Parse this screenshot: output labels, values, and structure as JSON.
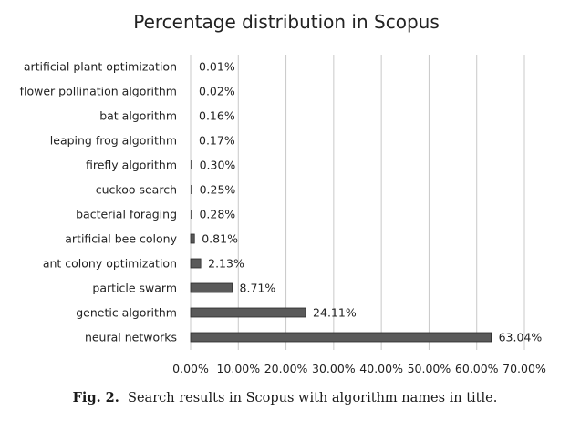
{
  "caption": {
    "label": "Fig. 2.",
    "text": "Search results in Scopus with algorithm names in title."
  },
  "colors": {
    "bar": "#5a5a5a",
    "bar_stroke": "#2a2a2a",
    "grid": "#c8c8c8",
    "text": "#222222"
  },
  "chart_data": {
    "type": "bar",
    "orientation": "horizontal",
    "title": "Percentage distribution in Scopus",
    "xlabel": "",
    "ylabel": "",
    "xlim": [
      0,
      70
    ],
    "grid": true,
    "categories": [
      "artificial plant optimization",
      "flower pollination algorithm",
      "bat algorithm",
      "leaping frog algorithm",
      "firefly algorithm",
      "cuckoo search",
      "bacterial foraging",
      "artificial bee colony",
      "ant colony optimization",
      "particle swarm",
      "genetic algorithm",
      "neural networks"
    ],
    "values": [
      0.01,
      0.02,
      0.16,
      0.17,
      0.3,
      0.25,
      0.28,
      0.81,
      2.13,
      8.71,
      24.11,
      63.04
    ],
    "value_labels": [
      "0.01%",
      "0.02%",
      "0.16%",
      "0.17%",
      "0.30%",
      "0.25%",
      "0.28%",
      "0.81%",
      "2.13%",
      "8.71%",
      "24.11%",
      "63.04%"
    ],
    "x_ticks": [
      0,
      10,
      20,
      30,
      40,
      50,
      60,
      70
    ],
    "x_tick_labels": [
      "0.00%",
      "10.00%",
      "20.00%",
      "30.00%",
      "40.00%",
      "50.00%",
      "60.00%",
      "70.00%"
    ]
  }
}
